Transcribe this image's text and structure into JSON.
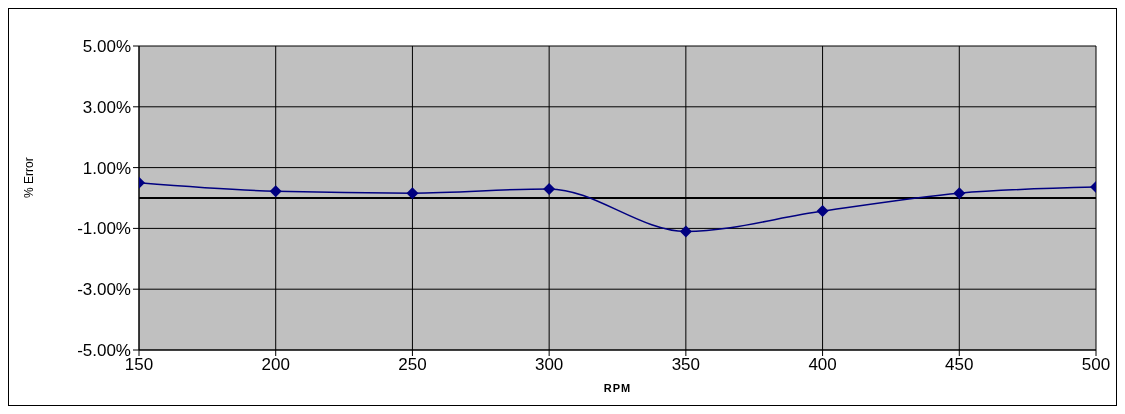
{
  "chart_data": {
    "type": "line",
    "xlabel": "RPM",
    "ylabel": "% Error",
    "x": [
      150,
      200,
      250,
      300,
      350,
      400,
      450,
      500
    ],
    "series": [
      {
        "color": "#000080",
        "values": [
          0.5,
          0.22,
          0.16,
          0.3,
          -1.1,
          -0.43,
          0.16,
          0.36
        ]
      }
    ],
    "xlim": [
      150,
      500
    ],
    "xticks": [
      150,
      200,
      250,
      300,
      350,
      400,
      450,
      500
    ],
    "ylim": [
      -5,
      5
    ],
    "yticks": [
      {
        "value": -5,
        "label": "-5.00%"
      },
      {
        "value": -3,
        "label": "-3.00%"
      },
      {
        "value": -1,
        "label": "-1.00%"
      },
      {
        "value": 1,
        "label": "1.00%"
      },
      {
        "value": 3,
        "label": "3.00%"
      },
      {
        "value": 5,
        "label": "5.00%"
      }
    ],
    "ref_lines": [
      {
        "axis": "y",
        "value": 0,
        "color": "#000000"
      }
    ],
    "grid": true,
    "marker": "diamond",
    "line_style": "solid"
  }
}
